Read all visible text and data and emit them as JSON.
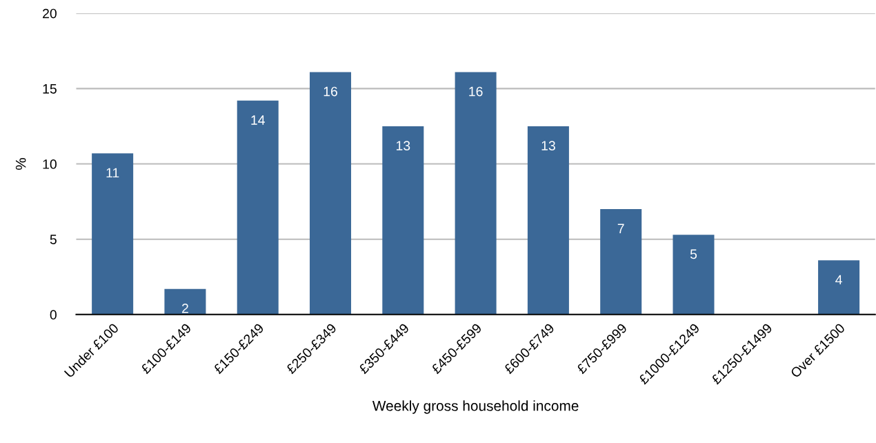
{
  "chart_data": {
    "type": "bar",
    "categories": [
      "Under £100",
      "£100-£149",
      "£150-£249",
      "£250-£349",
      "£350-£449",
      "£450-£599",
      "£600-£749",
      "£750-£999",
      "£1000-£1249",
      "£1250-£1499",
      "Over £1500"
    ],
    "values": [
      10.7,
      1.7,
      14.2,
      16.1,
      12.5,
      16.1,
      12.5,
      7.0,
      5.3,
      0,
      3.6
    ],
    "value_labels": [
      "11",
      "2",
      "14",
      "16",
      "13",
      "16",
      "13",
      "7",
      "5",
      null,
      "4"
    ],
    "color": "#3b6897",
    "xlabel": "Weekly gross household income",
    "ylabel": "%",
    "ylim": [
      0,
      20
    ],
    "yticks": [
      0,
      5,
      10,
      15,
      20
    ],
    "grid": "y",
    "legend": false
  }
}
